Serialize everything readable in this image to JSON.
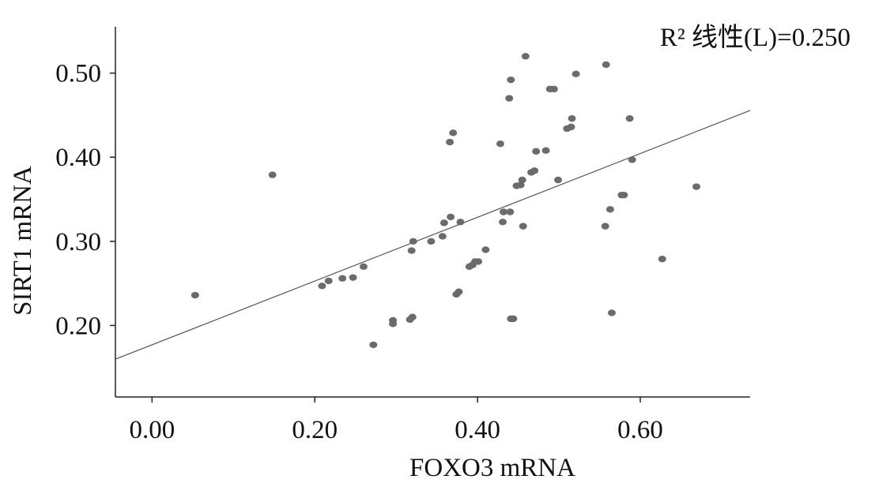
{
  "chart_data": {
    "type": "scatter",
    "title": "",
    "xlabel": "FOXO3 mRNA",
    "ylabel": "SIRT1 mRNA",
    "xlim": [
      -0.045,
      0.735
    ],
    "ylim": [
      0.115,
      0.555
    ],
    "xticks": [
      0.0,
      0.2,
      0.4,
      0.6
    ],
    "xtick_labels": [
      "0.00",
      "0.20",
      "0.40",
      "0.60"
    ],
    "yticks": [
      0.2,
      0.3,
      0.4,
      0.5
    ],
    "ytick_labels": [
      "0.20",
      "0.30",
      "0.40",
      "0.50"
    ],
    "grid": false,
    "legend": "none",
    "annotation": "R² 线性(L)=0.250",
    "point_color": "#6b6b6b",
    "line_color": "#555555",
    "fit_line": {
      "intercept": 0.177,
      "slope": 0.379
    },
    "series": [
      {
        "points": [
          [
            0.053,
            0.236
          ],
          [
            0.148,
            0.379
          ],
          [
            0.209,
            0.247
          ],
          [
            0.217,
            0.253
          ],
          [
            0.234,
            0.256
          ],
          [
            0.247,
            0.257
          ],
          [
            0.26,
            0.27
          ],
          [
            0.272,
            0.177
          ],
          [
            0.296,
            0.202
          ],
          [
            0.296,
            0.206
          ],
          [
            0.317,
            0.207
          ],
          [
            0.32,
            0.21
          ],
          [
            0.319,
            0.289
          ],
          [
            0.321,
            0.3
          ],
          [
            0.343,
            0.3
          ],
          [
            0.357,
            0.306
          ],
          [
            0.359,
            0.322
          ],
          [
            0.367,
            0.329
          ],
          [
            0.366,
            0.418
          ],
          [
            0.37,
            0.429
          ],
          [
            0.374,
            0.237
          ],
          [
            0.377,
            0.24
          ],
          [
            0.379,
            0.323
          ],
          [
            0.39,
            0.27
          ],
          [
            0.394,
            0.272
          ],
          [
            0.397,
            0.276
          ],
          [
            0.401,
            0.276
          ],
          [
            0.41,
            0.29
          ],
          [
            0.428,
            0.416
          ],
          [
            0.431,
            0.323
          ],
          [
            0.432,
            0.335
          ],
          [
            0.44,
            0.335
          ],
          [
            0.439,
            0.47
          ],
          [
            0.441,
            0.492
          ],
          [
            0.441,
            0.208
          ],
          [
            0.444,
            0.208
          ],
          [
            0.448,
            0.366
          ],
          [
            0.453,
            0.367
          ],
          [
            0.455,
            0.373
          ],
          [
            0.456,
            0.318
          ],
          [
            0.459,
            0.52
          ],
          [
            0.466,
            0.382
          ],
          [
            0.47,
            0.384
          ],
          [
            0.472,
            0.407
          ],
          [
            0.484,
            0.408
          ],
          [
            0.489,
            0.481
          ],
          [
            0.494,
            0.481
          ],
          [
            0.499,
            0.373
          ],
          [
            0.51,
            0.434
          ],
          [
            0.515,
            0.436
          ],
          [
            0.516,
            0.446
          ],
          [
            0.521,
            0.499
          ],
          [
            0.557,
            0.318
          ],
          [
            0.558,
            0.51
          ],
          [
            0.563,
            0.338
          ],
          [
            0.565,
            0.215
          ],
          [
            0.577,
            0.355
          ],
          [
            0.58,
            0.355
          ],
          [
            0.587,
            0.446
          ],
          [
            0.59,
            0.397
          ],
          [
            0.627,
            0.279
          ],
          [
            0.669,
            0.365
          ]
        ]
      }
    ]
  }
}
